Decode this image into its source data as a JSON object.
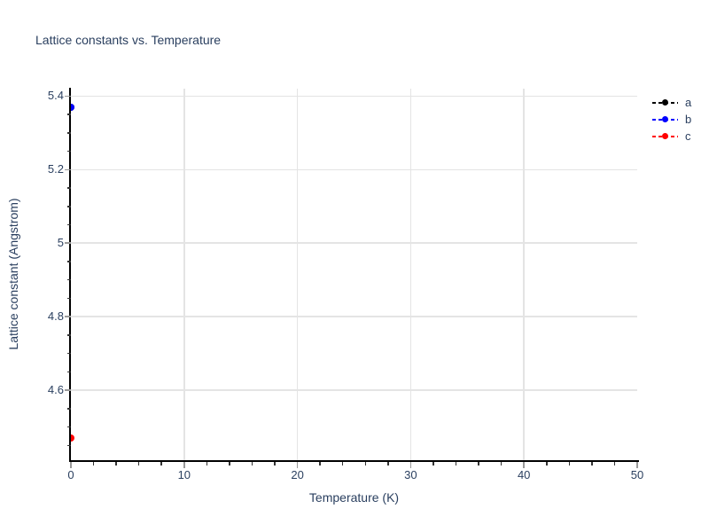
{
  "chart_data": {
    "type": "scatter",
    "title": "Lattice constants vs. Temperature",
    "xlabel": "Temperature (K)",
    "ylabel": "Lattice constant (Angstrom)",
    "x": [
      0
    ],
    "series": [
      {
        "name": "a",
        "color": "#000000",
        "values": [
          5.37
        ]
      },
      {
        "name": "b",
        "color": "#0000ff",
        "values": [
          5.37
        ]
      },
      {
        "name": "c",
        "color": "#ff0000",
        "values": [
          4.47
        ]
      }
    ],
    "xlim": [
      0,
      50
    ],
    "ylim": [
      4.41,
      5.42
    ],
    "x_ticks": {
      "major": [
        0,
        10,
        20,
        30,
        40,
        50
      ],
      "labels": [
        "0",
        "10",
        "20",
        "30",
        "40",
        "50"
      ],
      "minor_step": 2
    },
    "y_ticks": {
      "major": [
        4.6,
        4.8,
        5.0,
        5.2,
        5.4
      ],
      "labels": [
        "4.6",
        "4.8",
        "5",
        "5.2",
        "5.4"
      ],
      "minor_step": 0.05
    },
    "x_gridlines": [
      10,
      20,
      30,
      40
    ],
    "y_gridlines": [
      4.6,
      4.8,
      5.0,
      5.2,
      5.4
    ],
    "grid": true,
    "legend_position": "top-right",
    "line_style": "dashed",
    "marker": "circle"
  },
  "style_colors": {
    "text": "#2a3f5f",
    "grid": "#e4e4e4",
    "spine": "#000000",
    "tick_major": "#999999",
    "tick_minor": "#333333",
    "background": "#ffffff"
  }
}
